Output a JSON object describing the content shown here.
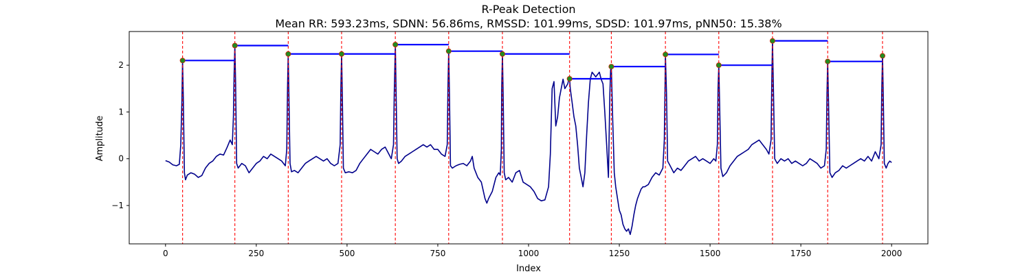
{
  "chart_data": {
    "type": "line",
    "title": "R-Peak Detection",
    "subtitle": "Mean RR: 593.23ms, SDNN: 56.86ms, RMSSD: 101.99ms, SDSD: 101.97ms, pNN50: 15.38%",
    "xlabel": "Index",
    "ylabel": "Amplitude",
    "xlim": [
      -100,
      2100
    ],
    "ylim": [
      -1.82,
      2.72
    ],
    "xticks": [
      0,
      250,
      500,
      750,
      1000,
      1250,
      1500,
      1750,
      2000
    ],
    "xtick_labels": [
      "0",
      "250",
      "500",
      "750",
      "1000",
      "1250",
      "1500",
      "1750",
      "2000"
    ],
    "yticks": [
      -1,
      0,
      1,
      2
    ],
    "ytick_labels": [
      "−1",
      "0",
      "1",
      "2"
    ],
    "grid": false,
    "legend": "none",
    "colors": {
      "signal": "#00008b",
      "peak_marker": "#228b22",
      "peak_marker_edge": "#cc2200",
      "peak_line": "#ff0000",
      "rr_segment": "#0000ff"
    },
    "peaks": [
      {
        "x": 47,
        "y": 2.1
      },
      {
        "x": 191,
        "y": 2.42
      },
      {
        "x": 338,
        "y": 2.24
      },
      {
        "x": 485,
        "y": 2.24
      },
      {
        "x": 633,
        "y": 2.44
      },
      {
        "x": 780,
        "y": 2.3
      },
      {
        "x": 928,
        "y": 2.24
      },
      {
        "x": 1113,
        "y": 1.71
      },
      {
        "x": 1228,
        "y": 1.97
      },
      {
        "x": 1377,
        "y": 2.23
      },
      {
        "x": 1524,
        "y": 2.0
      },
      {
        "x": 1672,
        "y": 2.52
      },
      {
        "x": 1824,
        "y": 2.08
      },
      {
        "x": 1975,
        "y": 2.2
      }
    ],
    "signal": [
      [
        0,
        -0.04
      ],
      [
        10,
        -0.07
      ],
      [
        20,
        -0.13
      ],
      [
        30,
        -0.15
      ],
      [
        38,
        -0.12
      ],
      [
        42,
        0.3
      ],
      [
        45,
        1.2
      ],
      [
        47,
        2.1
      ],
      [
        49,
        1.3
      ],
      [
        52,
        -0.3
      ],
      [
        55,
        -0.45
      ],
      [
        60,
        -0.35
      ],
      [
        70,
        -0.3
      ],
      [
        80,
        -0.33
      ],
      [
        90,
        -0.4
      ],
      [
        100,
        -0.36
      ],
      [
        110,
        -0.2
      ],
      [
        120,
        -0.1
      ],
      [
        130,
        -0.05
      ],
      [
        140,
        0.05
      ],
      [
        150,
        0.1
      ],
      [
        160,
        0.08
      ],
      [
        170,
        0.25
      ],
      [
        178,
        0.4
      ],
      [
        184,
        0.3
      ],
      [
        187,
        0.9
      ],
      [
        189,
        1.8
      ],
      [
        191,
        2.42
      ],
      [
        193,
        1.6
      ],
      [
        196,
        -0.1
      ],
      [
        200,
        -0.2
      ],
      [
        210,
        -0.1
      ],
      [
        220,
        -0.15
      ],
      [
        230,
        -0.3
      ],
      [
        240,
        -0.2
      ],
      [
        250,
        -0.1
      ],
      [
        260,
        -0.05
      ],
      [
        270,
        0.05
      ],
      [
        280,
        0.0
      ],
      [
        290,
        0.1
      ],
      [
        300,
        0.05
      ],
      [
        310,
        0.0
      ],
      [
        320,
        -0.05
      ],
      [
        330,
        -0.15
      ],
      [
        334,
        0.2
      ],
      [
        336,
        1.5
      ],
      [
        338,
        2.24
      ],
      [
        340,
        1.3
      ],
      [
        343,
        -0.1
      ],
      [
        347,
        -0.28
      ],
      [
        355,
        -0.25
      ],
      [
        365,
        -0.3
      ],
      [
        375,
        -0.2
      ],
      [
        385,
        -0.1
      ],
      [
        395,
        -0.05
      ],
      [
        405,
        0.0
      ],
      [
        415,
        0.05
      ],
      [
        425,
        0.0
      ],
      [
        435,
        -0.05
      ],
      [
        445,
        0.0
      ],
      [
        455,
        -0.1
      ],
      [
        465,
        -0.15
      ],
      [
        475,
        -0.1
      ],
      [
        481,
        0.3
      ],
      [
        483,
        1.5
      ],
      [
        485,
        2.24
      ],
      [
        487,
        1.4
      ],
      [
        490,
        -0.2
      ],
      [
        495,
        -0.3
      ],
      [
        505,
        -0.28
      ],
      [
        515,
        -0.3
      ],
      [
        525,
        -0.25
      ],
      [
        535,
        -0.1
      ],
      [
        545,
        0.0
      ],
      [
        555,
        0.1
      ],
      [
        565,
        0.2
      ],
      [
        575,
        0.15
      ],
      [
        585,
        0.1
      ],
      [
        595,
        0.2
      ],
      [
        605,
        0.25
      ],
      [
        615,
        0.1
      ],
      [
        622,
        0.0
      ],
      [
        628,
        0.3
      ],
      [
        630,
        1.4
      ],
      [
        633,
        2.44
      ],
      [
        635,
        1.5
      ],
      [
        638,
        0.0
      ],
      [
        642,
        -0.1
      ],
      [
        650,
        -0.05
      ],
      [
        660,
        0.05
      ],
      [
        670,
        0.1
      ],
      [
        680,
        0.15
      ],
      [
        690,
        0.2
      ],
      [
        700,
        0.25
      ],
      [
        710,
        0.3
      ],
      [
        720,
        0.25
      ],
      [
        730,
        0.3
      ],
      [
        740,
        0.2
      ],
      [
        750,
        0.2
      ],
      [
        760,
        0.1
      ],
      [
        770,
        0.05
      ],
      [
        776,
        0.3
      ],
      [
        778,
        1.5
      ],
      [
        780,
        2.3
      ],
      [
        782,
        1.4
      ],
      [
        785,
        -0.15
      ],
      [
        790,
        -0.2
      ],
      [
        800,
        -0.15
      ],
      [
        810,
        -0.12
      ],
      [
        820,
        -0.1
      ],
      [
        830,
        -0.15
      ],
      [
        840,
        -0.05
      ],
      [
        845,
        0.05
      ],
      [
        850,
        -0.2
      ],
      [
        860,
        -0.4
      ],
      [
        870,
        -0.5
      ],
      [
        880,
        -0.85
      ],
      [
        885,
        -0.95
      ],
      [
        890,
        -0.85
      ],
      [
        900,
        -0.7
      ],
      [
        910,
        -0.4
      ],
      [
        918,
        -0.3
      ],
      [
        922,
        -0.35
      ],
      [
        925,
        0.2
      ],
      [
        926,
        1.5
      ],
      [
        928,
        2.24
      ],
      [
        930,
        1.4
      ],
      [
        933,
        -0.3
      ],
      [
        937,
        -0.45
      ],
      [
        945,
        -0.4
      ],
      [
        955,
        -0.5
      ],
      [
        965,
        -0.3
      ],
      [
        975,
        -0.25
      ],
      [
        985,
        -0.5
      ],
      [
        995,
        -0.55
      ],
      [
        1005,
        -0.6
      ],
      [
        1015,
        -0.7
      ],
      [
        1025,
        -0.85
      ],
      [
        1035,
        -0.9
      ],
      [
        1045,
        -0.88
      ],
      [
        1055,
        -0.6
      ],
      [
        1060,
        0.1
      ],
      [
        1065,
        1.5
      ],
      [
        1070,
        1.65
      ],
      [
        1075,
        0.7
      ],
      [
        1080,
        0.9
      ],
      [
        1085,
        1.3
      ],
      [
        1090,
        1.5
      ],
      [
        1095,
        1.7
      ],
      [
        1100,
        1.5
      ],
      [
        1108,
        1.6
      ],
      [
        1111,
        1.7
      ],
      [
        1113,
        1.71
      ],
      [
        1115,
        1.5
      ],
      [
        1120,
        1.2
      ],
      [
        1125,
        0.9
      ],
      [
        1130,
        0.7
      ],
      [
        1135,
        0.3
      ],
      [
        1140,
        -0.2
      ],
      [
        1145,
        -0.4
      ],
      [
        1150,
        -0.6
      ],
      [
        1155,
        -0.3
      ],
      [
        1160,
        0.5
      ],
      [
        1165,
        1.2
      ],
      [
        1170,
        1.7
      ],
      [
        1175,
        1.85
      ],
      [
        1180,
        1.8
      ],
      [
        1185,
        1.75
      ],
      [
        1190,
        1.8
      ],
      [
        1195,
        1.85
      ],
      [
        1200,
        1.7
      ],
      [
        1205,
        1.6
      ],
      [
        1210,
        1.0
      ],
      [
        1215,
        0.3
      ],
      [
        1220,
        -0.4
      ],
      [
        1224,
        1.4
      ],
      [
        1226,
        1.9
      ],
      [
        1228,
        1.97
      ],
      [
        1232,
        0.8
      ],
      [
        1236,
        -0.3
      ],
      [
        1240,
        -0.6
      ],
      [
        1245,
        -0.85
      ],
      [
        1250,
        -1.1
      ],
      [
        1255,
        -1.2
      ],
      [
        1260,
        -1.4
      ],
      [
        1265,
        -1.5
      ],
      [
        1270,
        -1.55
      ],
      [
        1275,
        -1.5
      ],
      [
        1280,
        -1.62
      ],
      [
        1285,
        -1.45
      ],
      [
        1290,
        -1.2
      ],
      [
        1295,
        -1.0
      ],
      [
        1300,
        -0.85
      ],
      [
        1305,
        -0.75
      ],
      [
        1310,
        -0.65
      ],
      [
        1315,
        -0.6
      ],
      [
        1320,
        -0.6
      ],
      [
        1330,
        -0.55
      ],
      [
        1340,
        -0.4
      ],
      [
        1350,
        -0.3
      ],
      [
        1360,
        -0.35
      ],
      [
        1370,
        -0.2
      ],
      [
        1374,
        0.4
      ],
      [
        1376,
        1.6
      ],
      [
        1377,
        2.23
      ],
      [
        1380,
        1.4
      ],
      [
        1383,
        -0.05
      ],
      [
        1390,
        -0.15
      ],
      [
        1400,
        -0.3
      ],
      [
        1410,
        -0.2
      ],
      [
        1420,
        -0.25
      ],
      [
        1430,
        -0.15
      ],
      [
        1440,
        -0.05
      ],
      [
        1450,
        0.0
      ],
      [
        1460,
        0.05
      ],
      [
        1470,
        -0.05
      ],
      [
        1480,
        0.0
      ],
      [
        1490,
        -0.05
      ],
      [
        1500,
        -0.1
      ],
      [
        1510,
        0.0
      ],
      [
        1516,
        -0.05
      ],
      [
        1520,
        0.3
      ],
      [
        1522,
        1.5
      ],
      [
        1524,
        2.0
      ],
      [
        1526,
        1.3
      ],
      [
        1530,
        -0.2
      ],
      [
        1535,
        -0.38
      ],
      [
        1545,
        -0.3
      ],
      [
        1555,
        -0.15
      ],
      [
        1565,
        -0.05
      ],
      [
        1575,
        0.05
      ],
      [
        1585,
        0.1
      ],
      [
        1595,
        0.15
      ],
      [
        1605,
        0.2
      ],
      [
        1615,
        0.3
      ],
      [
        1625,
        0.35
      ],
      [
        1635,
        0.4
      ],
      [
        1645,
        0.3
      ],
      [
        1655,
        0.2
      ],
      [
        1662,
        0.1
      ],
      [
        1668,
        0.4
      ],
      [
        1670,
        1.7
      ],
      [
        1672,
        2.52
      ],
      [
        1674,
        1.7
      ],
      [
        1678,
        0.0
      ],
      [
        1685,
        -0.1
      ],
      [
        1695,
        0.0
      ],
      [
        1705,
        -0.05
      ],
      [
        1715,
        0.0
      ],
      [
        1725,
        -0.1
      ],
      [
        1735,
        -0.05
      ],
      [
        1745,
        -0.1
      ],
      [
        1755,
        -0.15
      ],
      [
        1765,
        -0.1
      ],
      [
        1775,
        0.0
      ],
      [
        1785,
        -0.05
      ],
      [
        1795,
        -0.1
      ],
      [
        1805,
        -0.2
      ],
      [
        1815,
        -0.15
      ],
      [
        1820,
        0.2
      ],
      [
        1822,
        1.4
      ],
      [
        1824,
        2.08
      ],
      [
        1826,
        1.3
      ],
      [
        1830,
        -0.3
      ],
      [
        1836,
        -0.4
      ],
      [
        1845,
        -0.3
      ],
      [
        1855,
        -0.25
      ],
      [
        1865,
        -0.15
      ],
      [
        1875,
        -0.2
      ],
      [
        1885,
        -0.15
      ],
      [
        1895,
        -0.1
      ],
      [
        1905,
        -0.05
      ],
      [
        1915,
        0.0
      ],
      [
        1925,
        -0.05
      ],
      [
        1935,
        0.05
      ],
      [
        1945,
        -0.05
      ],
      [
        1955,
        0.15
      ],
      [
        1965,
        0.0
      ],
      [
        1971,
        0.3
      ],
      [
        1973,
        1.5
      ],
      [
        1975,
        2.2
      ],
      [
        1977,
        1.4
      ],
      [
        1980,
        -0.1
      ],
      [
        1985,
        -0.2
      ],
      [
        1990,
        -0.1
      ],
      [
        1995,
        -0.05
      ],
      [
        2000,
        -0.08
      ]
    ]
  }
}
